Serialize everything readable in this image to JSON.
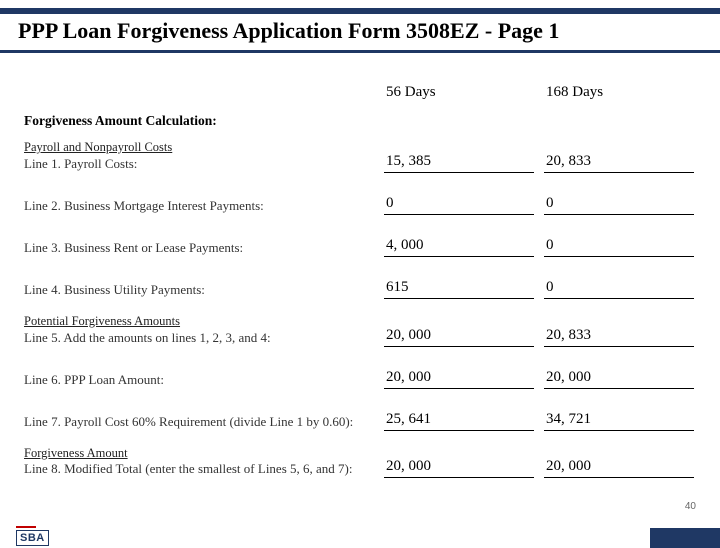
{
  "title": "PPP Loan Forgiveness Application Form 3508EZ -  Page 1",
  "columns": {
    "col1_header": "56 Days",
    "col2_header": "168 Days"
  },
  "sections": {
    "calc_header": "Forgiveness Amount Calculation:",
    "costs_header": "Payroll and Nonpayroll Costs",
    "potential_header": "Potential Forgiveness Amounts",
    "forgive_header": "Forgiveness Amount"
  },
  "lines": {
    "l1": {
      "label": "Line 1.   Payroll Costs:",
      "v1": "15, 385",
      "v2": "20, 833"
    },
    "l2": {
      "label": "Line 2.   Business Mortgage Interest Payments:",
      "v1": "0",
      "v2": "0"
    },
    "l3": {
      "label": "Line 3.   Business Rent or Lease Payments:",
      "v1": "4, 000",
      "v2": "0"
    },
    "l4": {
      "label": "Line 4.   Business Utility Payments:",
      "v1": "615",
      "v2": "0"
    },
    "l5": {
      "label": "Line 5.   Add the amounts on lines 1, 2, 3, and 4:",
      "v1": "20, 000",
      "v2": "20, 833"
    },
    "l6": {
      "label": "Line 6.   PPP Loan Amount:",
      "v1": "20, 000",
      "v2": "20, 000"
    },
    "l7": {
      "label": "Line 7.   Payroll Cost 60% Requirement (divide Line 1 by 0.60):",
      "v1": "25, 641",
      "v2": "34, 721"
    },
    "l8": {
      "label": "Line 8.   Modified Total (enter the smallest of Lines 5, 6, and 7):",
      "v1": "20, 000",
      "v2": "20, 000"
    }
  },
  "page_number": "40",
  "logo_text": "SBA",
  "colors": {
    "brand_blue": "#1f3864",
    "accent_red": "#c00000",
    "text": "#000000",
    "bg": "#ffffff"
  }
}
